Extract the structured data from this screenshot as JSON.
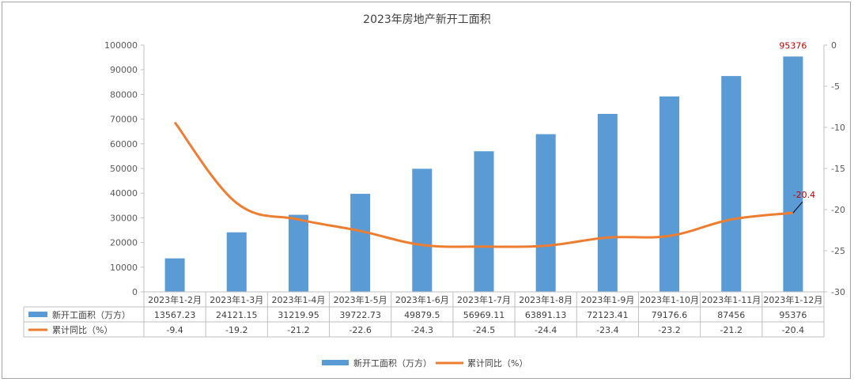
{
  "chart_data": {
    "type": "bar+line",
    "title": "2023年房地产新开工面积",
    "categories": [
      "2023年1-2月",
      "2023年1-3月",
      "2023年1-4月",
      "2023年1-5月",
      "2023年1-6月",
      "2023年1-7月",
      "2023年1-8月",
      "2023年1-9月",
      "2023年1-10月",
      "2023年1-11月",
      "2023年1-12月"
    ],
    "series": [
      {
        "name": "新开工面积（万方）",
        "type": "bar",
        "axis": "left",
        "color": "#5b9bd5",
        "values": [
          13567.23,
          24121.15,
          31219.95,
          39722.73,
          49879.5,
          56969.11,
          63891.13,
          72123.41,
          79176.6,
          87456,
          95376
        ],
        "labels": [
          "13567.23",
          "24121.15",
          "31219.95",
          "39722.73",
          "49879.5",
          "56969.11",
          "63891.13",
          "72123.41",
          "79176.6",
          "87456",
          "95376"
        ]
      },
      {
        "name": "累计同比（%）",
        "type": "line",
        "axis": "right",
        "color": "#ed7d31",
        "values": [
          -9.4,
          -19.2,
          -21.2,
          -22.6,
          -24.3,
          -24.5,
          -24.4,
          -23.4,
          -23.2,
          -21.2,
          -20.4
        ],
        "labels": [
          "-9.4",
          "-19.2",
          "-21.2",
          "-22.6",
          "-24.3",
          "-24.5",
          "-24.4",
          "-23.4",
          "-23.2",
          "-21.2",
          "-20.4"
        ]
      }
    ],
    "y_left": {
      "range": [
        0,
        100000
      ],
      "ticks": [
        "0",
        "10000",
        "20000",
        "30000",
        "40000",
        "50000",
        "60000",
        "70000",
        "80000",
        "90000",
        "100000"
      ]
    },
    "y_right": {
      "range": [
        -30,
        0
      ],
      "ticks": [
        "0",
        "-5",
        "-10",
        "-15",
        "-20",
        "-25",
        "-30"
      ]
    },
    "annotations": [
      {
        "text": "95376",
        "series": 0,
        "index": 10,
        "color": "#c00000"
      },
      {
        "text": "-20.4",
        "series": 1,
        "index": 10,
        "color": "#c00000"
      }
    ],
    "legend": {
      "position": "bottom",
      "items": [
        "新开工面积（万方）",
        "累计同比（%）"
      ]
    },
    "data_table": true,
    "grid": false
  }
}
